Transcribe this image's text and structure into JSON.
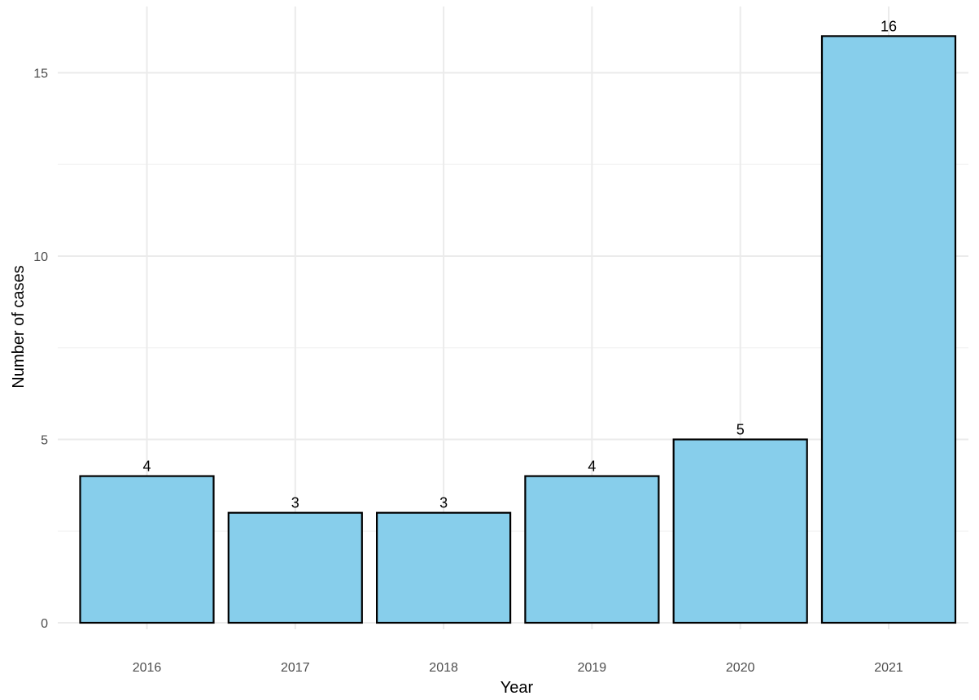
{
  "chart_data": {
    "type": "bar",
    "categories": [
      "2016",
      "2017",
      "2018",
      "2019",
      "2020",
      "2021"
    ],
    "values": [
      4,
      3,
      3,
      4,
      5,
      16
    ],
    "data_labels": [
      "4",
      "3",
      "3",
      "4",
      "5",
      "16"
    ],
    "xlabel": "Year",
    "ylabel": "Number of cases",
    "ylim": [
      0,
      16.8
    ],
    "yticks": [
      0,
      5,
      10,
      15
    ],
    "ytick_labels": [
      "0",
      "5",
      "10",
      "15"
    ],
    "grid": true,
    "legend": "none",
    "bar_fill": "#87ceeb",
    "bar_outline": "#000000"
  }
}
